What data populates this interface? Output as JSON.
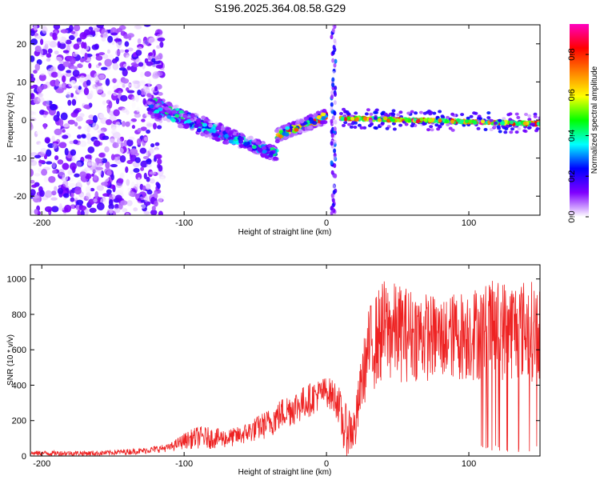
{
  "title": "S196.2025.364.08.58.G29",
  "chart_data": [
    {
      "type": "heatmap",
      "xlabel": "Height of straight line (km)",
      "ylabel": "Frequency (Hz)",
      "xlim": [
        -208,
        150
      ],
      "ylim": [
        -25,
        25
      ],
      "xticks": [
        -200,
        -100,
        0,
        100
      ],
      "yticks": [
        -20,
        -10,
        0,
        10,
        20
      ],
      "colorbar": {
        "label": "Normalized spectral amplitude",
        "range": [
          0,
          0.95
        ],
        "ticks": [
          0.0,
          0.2,
          0.4,
          0.6,
          0.8
        ],
        "colors": [
          "#ffffff",
          "#7f00ff",
          "#0000ff",
          "#00ffff",
          "#00ff00",
          "#ffff00",
          "#ff8000",
          "#ff0000",
          "#ff00c0"
        ]
      },
      "features": [
        {
          "name": "noise",
          "x": [
            -208,
            -125
          ],
          "freq": [
            -25,
            25
          ],
          "amp": [
            0.0,
            0.2
          ]
        },
        {
          "name": "upper-branch",
          "x": [
            -125,
            -35
          ],
          "freq": [
            5,
            -9
          ],
          "amp": [
            0.1,
            0.45
          ]
        },
        {
          "name": "lower-branch",
          "x": [
            -125,
            -35
          ],
          "freq": [
            3,
            -9
          ],
          "amp": [
            0.1,
            0.45
          ]
        },
        {
          "name": "rising-branch",
          "x": [
            -35,
            0
          ],
          "freq": [
            -4,
            1
          ],
          "amp": [
            0.2,
            0.9
          ]
        },
        {
          "name": "vertical-streak",
          "x": [
            5,
            5
          ],
          "freq": [
            -25,
            25
          ],
          "amp": [
            0.0,
            0.3
          ]
        },
        {
          "name": "steady-signal",
          "x": [
            10,
            150
          ],
          "freq": [
            0.5,
            -1.0
          ],
          "amp": [
            0.4,
            0.95
          ]
        }
      ]
    },
    {
      "type": "line",
      "xlabel": "Height of straight line (km)",
      "ylabel": "SNR (10 * v/v)",
      "xlim": [
        -208,
        150
      ],
      "ylim": [
        0,
        1080
      ],
      "xticks": [
        -200,
        -100,
        0,
        100
      ],
      "yticks": [
        0,
        200,
        400,
        600,
        800,
        1000
      ],
      "color": "#ee2222",
      "envelope": {
        "x": [
          -208,
          -160,
          -130,
          -110,
          -100,
          -90,
          -80,
          -70,
          -60,
          -50,
          -40,
          -30,
          -20,
          -10,
          0,
          8,
          12,
          20,
          25,
          30,
          40,
          60,
          80,
          100,
          120,
          140,
          150
        ],
        "low": [
          0,
          0,
          10,
          25,
          40,
          40,
          40,
          45,
          60,
          80,
          100,
          150,
          180,
          230,
          280,
          200,
          0,
          0,
          260,
          350,
          400,
          420,
          420,
          420,
          420,
          420,
          420
        ],
        "high": [
          30,
          30,
          45,
          70,
          130,
          170,
          160,
          150,
          170,
          220,
          270,
          340,
          380,
          420,
          450,
          420,
          300,
          280,
          600,
          850,
          1000,
          950,
          900,
          950,
          1000,
          1000,
          980
        ]
      }
    }
  ]
}
